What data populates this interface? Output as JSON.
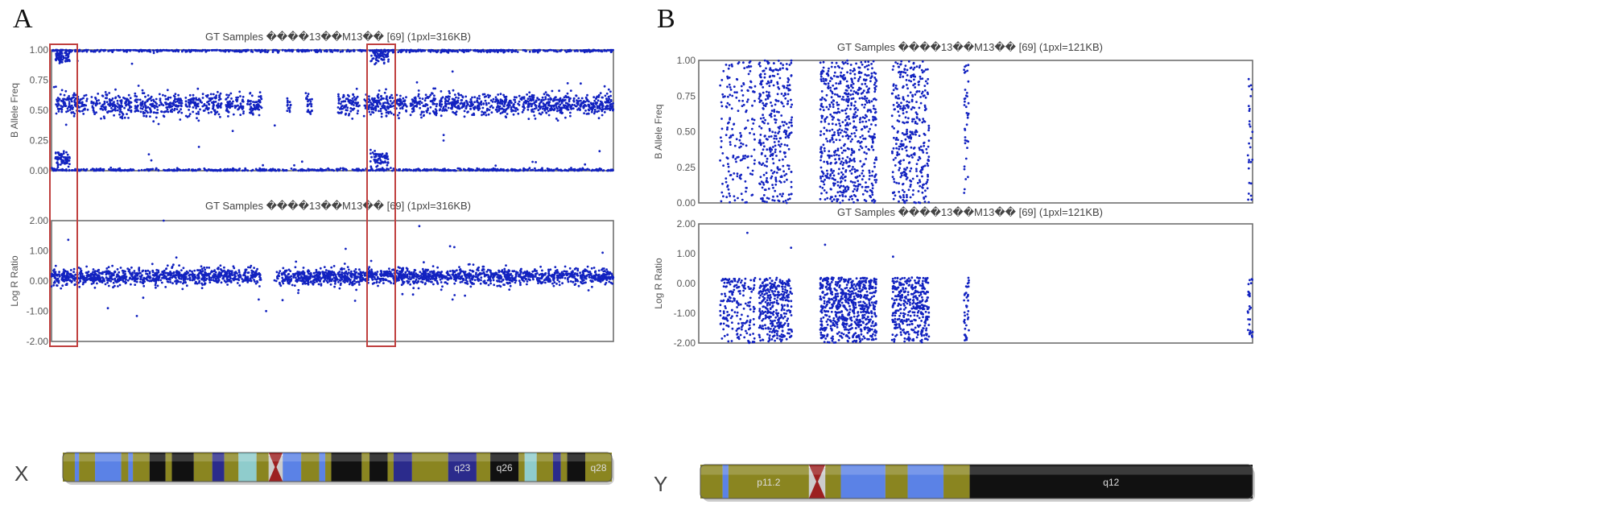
{
  "colors": {
    "point": "#1222c0",
    "frame": "#666",
    "highlight": "#c0403f",
    "olive": "#8a8520",
    "blue": "#5b82e6",
    "navy": "#2b2b8c",
    "black": "#111111",
    "cyan": "#8fcccc",
    "centromere": "#9c2020"
  },
  "panels": {
    "A": "A",
    "B": "B"
  },
  "chart_data": [
    {
      "id": "A-baf",
      "type": "scatter",
      "panel": "A",
      "title": "GT Samples ����13��M13�� [69]  (1pxl=316KB)",
      "ylabel": "B Allele Freq",
      "xlim": [
        0,
        155
      ],
      "ylim": [
        0,
        1
      ],
      "yticks": [
        "1.00",
        "0.75",
        "0.50",
        "0.25",
        "0.00"
      ],
      "homozygous_bands": [
        0,
        1
      ],
      "het_segments_mb": [
        [
          1,
          10
        ],
        [
          11,
          22
        ],
        [
          23,
          36
        ],
        [
          37,
          47
        ],
        [
          48,
          53
        ],
        [
          54,
          58
        ],
        [
          65,
          66
        ],
        [
          70,
          72
        ],
        [
          79,
          85
        ],
        [
          86,
          98
        ],
        [
          99,
          155
        ]
      ],
      "loh_segments_mb": [
        [
          0,
          6
        ],
        [
          87,
          94
        ]
      ],
      "loh_bands": [
        0.1,
        0.95
      ]
    },
    {
      "id": "A-lrr",
      "type": "scatter",
      "panel": "A",
      "title": "GT Samples ����13��M13�� [69]  (1pxl=316KB)",
      "ylabel": "Log R Ratio",
      "xlim": [
        0,
        155
      ],
      "ylim": [
        -2,
        2
      ],
      "yticks": [
        "2.00",
        "1.00",
        "0.00",
        "-1.00",
        "-2.00"
      ],
      "segments_mb": [
        [
          0,
          58
        ],
        [
          62,
          155
        ]
      ],
      "mean": 0.15,
      "sd": 0.13
    },
    {
      "id": "B-baf",
      "type": "scatter",
      "panel": "B",
      "title": "GT Samples ����13��M13�� [69]  (1pxl=121KB)",
      "ylabel": "B Allele Freq",
      "xlim": [
        0,
        57
      ],
      "ylim": [
        0,
        1
      ],
      "yticks": [
        "1.00",
        "0.75",
        "0.50",
        "0.25",
        "0.00"
      ],
      "noise_segments_mb": [
        [
          2.2,
          5.8,
          0.5
        ],
        [
          6.2,
          9.6,
          1
        ],
        [
          12.5,
          18.3,
          1.2
        ],
        [
          19.9,
          23.7,
          1
        ],
        [
          27.3,
          27.8,
          0.4
        ],
        [
          56.5,
          57,
          0.15
        ]
      ]
    },
    {
      "id": "B-lrr",
      "type": "scatter",
      "panel": "B",
      "title": "GT Samples ����13��M13�� [69]  (1pxl=121KB)",
      "ylabel": "Log R Ratio",
      "xlim": [
        0,
        57
      ],
      "ylim": [
        -2,
        2
      ],
      "yticks": [
        "2.00",
        "1.00",
        "0.00",
        "-1.00",
        "-2.00"
      ],
      "noise_segments_mb": [
        [
          2.2,
          5.8,
          0.5
        ],
        [
          6.2,
          9.6,
          1
        ],
        [
          12.5,
          18.3,
          1.2
        ],
        [
          19.9,
          23.7,
          1
        ],
        [
          27.3,
          27.8,
          0.4
        ],
        [
          56.5,
          57,
          0.15
        ]
      ],
      "range": [
        -2,
        0.2
      ]
    }
  ],
  "chromosomes": [
    {
      "name": "X",
      "length_mb": 155,
      "bands": [
        [
          0,
          3.4,
          "olive",
          ""
        ],
        [
          3.4,
          4.6,
          "blue",
          ""
        ],
        [
          4.6,
          9.1,
          "olive",
          ""
        ],
        [
          9.1,
          16.5,
          "blue",
          ""
        ],
        [
          16.5,
          18.5,
          "olive",
          ""
        ],
        [
          18.5,
          19.8,
          "blue",
          ""
        ],
        [
          19.8,
          24.5,
          "olive",
          ""
        ],
        [
          24.5,
          29,
          "black",
          ""
        ],
        [
          29,
          30.8,
          "olive",
          ""
        ],
        [
          30.8,
          37,
          "black",
          ""
        ],
        [
          37,
          42.2,
          "olive",
          ""
        ],
        [
          42.2,
          45.6,
          "navy",
          ""
        ],
        [
          45.6,
          49.6,
          "olive",
          ""
        ],
        [
          49.6,
          54.7,
          "cyan",
          ""
        ],
        [
          54.7,
          58.1,
          "olive",
          ""
        ],
        [
          58.1,
          62.1,
          "centromere",
          ""
        ],
        [
          62.1,
          67.3,
          "blue",
          ""
        ],
        [
          67.3,
          72.4,
          "olive",
          ""
        ],
        [
          72.4,
          74.1,
          "blue",
          ""
        ],
        [
          74.1,
          75.8,
          "olive",
          ""
        ],
        [
          75.8,
          84.4,
          "black",
          ""
        ],
        [
          84.4,
          86.6,
          "olive",
          ""
        ],
        [
          86.6,
          91.7,
          "black",
          ""
        ],
        [
          91.7,
          93.4,
          "olive",
          ""
        ],
        [
          93.4,
          98.6,
          "navy",
          ""
        ],
        [
          98.6,
          108.8,
          "olive",
          ""
        ],
        [
          108.8,
          116.8,
          "navy",
          "q23"
        ],
        [
          116.8,
          120.7,
          "olive",
          ""
        ],
        [
          120.7,
          128.7,
          "black",
          "q26"
        ],
        [
          128.7,
          130.4,
          "olive",
          ""
        ],
        [
          130.4,
          133.8,
          "cyan",
          ""
        ],
        [
          133.8,
          138.4,
          "olive",
          ""
        ],
        [
          138.4,
          140.6,
          "navy",
          ""
        ],
        [
          140.6,
          142.4,
          "olive",
          ""
        ],
        [
          142.4,
          147.5,
          "black",
          ""
        ],
        [
          147.5,
          155,
          "olive",
          "q28"
        ]
      ]
    },
    {
      "name": "Y",
      "length_mb": 57,
      "bands": [
        [
          0,
          2.3,
          "olive",
          ""
        ],
        [
          2.3,
          2.9,
          "blue",
          ""
        ],
        [
          2.9,
          11.2,
          "olive",
          "p11.2"
        ],
        [
          11.2,
          12.9,
          "centromere",
          ""
        ],
        [
          12.9,
          14.5,
          "olive",
          ""
        ],
        [
          14.5,
          19.1,
          "blue",
          ""
        ],
        [
          19.1,
          21.4,
          "olive",
          ""
        ],
        [
          21.4,
          25.1,
          "blue",
          ""
        ],
        [
          25.1,
          27.8,
          "olive",
          ""
        ],
        [
          27.8,
          57,
          "black",
          "q12"
        ]
      ]
    }
  ]
}
